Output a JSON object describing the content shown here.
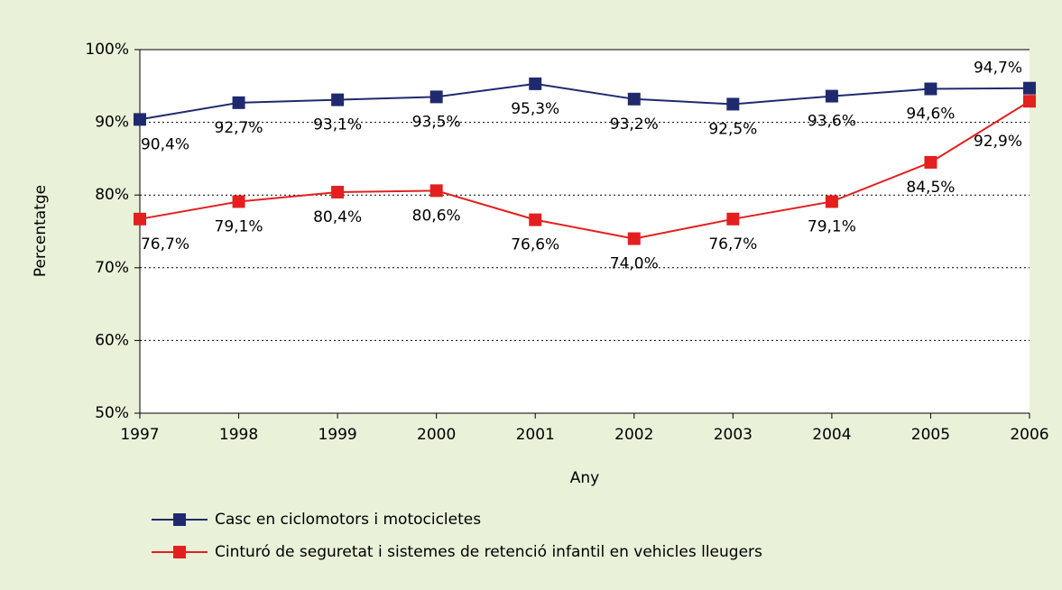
{
  "chart_data": {
    "type": "line",
    "categories": [
      "1997",
      "1998",
      "1999",
      "2000",
      "2001",
      "2002",
      "2003",
      "2004",
      "2005",
      "2006"
    ],
    "series": [
      {
        "name": "Casc en ciclomotors i motocicletes",
        "color": "#1f2a6e",
        "values": [
          90.4,
          92.7,
          93.1,
          93.5,
          95.3,
          93.2,
          92.5,
          93.6,
          94.6,
          94.7
        ],
        "value_labels": [
          "90,4%",
          "92,7%",
          "93,1%",
          "93,5%",
          "95,3%",
          "93,2%",
          "92,5%",
          "93,6%",
          "94,6%",
          "94,7%"
        ]
      },
      {
        "name": "Cinturó de seguretat i sistemes de retenció infantil en vehicles lleugers",
        "color": "#e3201f",
        "values": [
          76.7,
          79.1,
          80.4,
          80.6,
          76.6,
          74.0,
          76.7,
          79.1,
          84.5,
          92.9
        ],
        "value_labels": [
          "76,7%",
          "79,1%",
          "80,4%",
          "80,6%",
          "76,6%",
          "74,0%",
          "76,7%",
          "79,1%",
          "84,5%",
          "92,9%"
        ]
      }
    ],
    "xlabel": "Any",
    "ylabel": "Percentatge",
    "ylim": [
      50,
      100
    ],
    "yticks": [
      {
        "value": 50,
        "label": "50%"
      },
      {
        "value": 60,
        "label": "60%"
      },
      {
        "value": 70,
        "label": "70%"
      },
      {
        "value": 80,
        "label": "80%"
      },
      {
        "value": 90,
        "label": "90%"
      },
      {
        "value": 100,
        "label": "100%"
      }
    ],
    "grid": true
  }
}
